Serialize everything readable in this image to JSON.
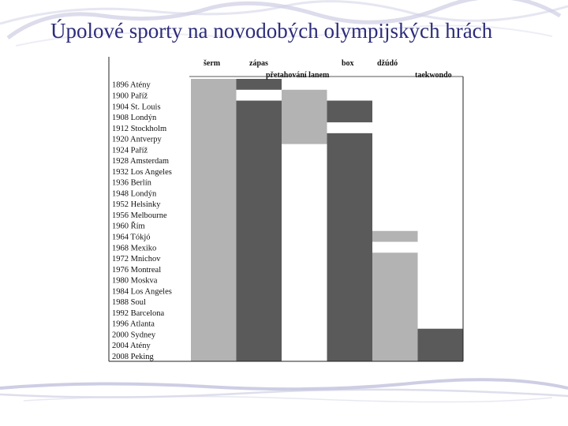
{
  "slide": {
    "title": "Úpolové sporty na novodobých olympijských hrách"
  },
  "colors": {
    "title": "#2c2c7a",
    "light_bar": "#b3b3b3",
    "dark_bar": "#5a5a5a",
    "decoration": "#b8b8d8"
  },
  "chart_data": {
    "type": "bar",
    "orientation": "timeline",
    "categories": [
      "1896 Atény",
      "1900 Paříž",
      "1904 St. Louis",
      "1908 Londýn",
      "1912 Stockholm",
      "1920 Antverpy",
      "1924 Paříž",
      "1928 Amsterdam",
      "1932 Los Angeles",
      "1936 Berlín",
      "1948 Londýn",
      "1952 Helsinky",
      "1956 Melbourne",
      "1960 Řím",
      "1964 Tókjó",
      "1968 Mexiko",
      "1972 Mnichov",
      "1976 Montreal",
      "1980 Moskva",
      "1984 Los Angeles",
      "1988 Soul",
      "1992 Barcelona",
      "1996 Atlanta",
      "2000 Sydney",
      "2004 Atény",
      "2008 Peking"
    ],
    "series": [
      {
        "name": "šerm",
        "color": "light",
        "present": [
          1,
          1,
          1,
          1,
          1,
          1,
          1,
          1,
          1,
          1,
          1,
          1,
          1,
          1,
          1,
          1,
          1,
          1,
          1,
          1,
          1,
          1,
          1,
          1,
          1,
          1
        ]
      },
      {
        "name": "zápas",
        "color": "dark",
        "present": [
          1,
          0,
          1,
          1,
          1,
          1,
          1,
          1,
          1,
          1,
          1,
          1,
          1,
          1,
          1,
          1,
          1,
          1,
          1,
          1,
          1,
          1,
          1,
          1,
          1,
          1
        ]
      },
      {
        "name": "přetahování lanem",
        "color": "light",
        "present": [
          0,
          1,
          1,
          1,
          1,
          1,
          0,
          0,
          0,
          0,
          0,
          0,
          0,
          0,
          0,
          0,
          0,
          0,
          0,
          0,
          0,
          0,
          0,
          0,
          0,
          0
        ]
      },
      {
        "name": "box",
        "color": "dark",
        "present": [
          0,
          0,
          1,
          1,
          0,
          1,
          1,
          1,
          1,
          1,
          1,
          1,
          1,
          1,
          1,
          1,
          1,
          1,
          1,
          1,
          1,
          1,
          1,
          1,
          1,
          1
        ]
      },
      {
        "name": "džúdó",
        "color": "light",
        "present": [
          0,
          0,
          0,
          0,
          0,
          0,
          0,
          0,
          0,
          0,
          0,
          0,
          0,
          0,
          1,
          0,
          1,
          1,
          1,
          1,
          1,
          1,
          1,
          1,
          1,
          1
        ]
      },
      {
        "name": "taekwondo",
        "color": "dark",
        "present": [
          0,
          0,
          0,
          0,
          0,
          0,
          0,
          0,
          0,
          0,
          0,
          0,
          0,
          0,
          0,
          0,
          0,
          0,
          0,
          0,
          0,
          0,
          0,
          1,
          1,
          1
        ]
      }
    ]
  }
}
